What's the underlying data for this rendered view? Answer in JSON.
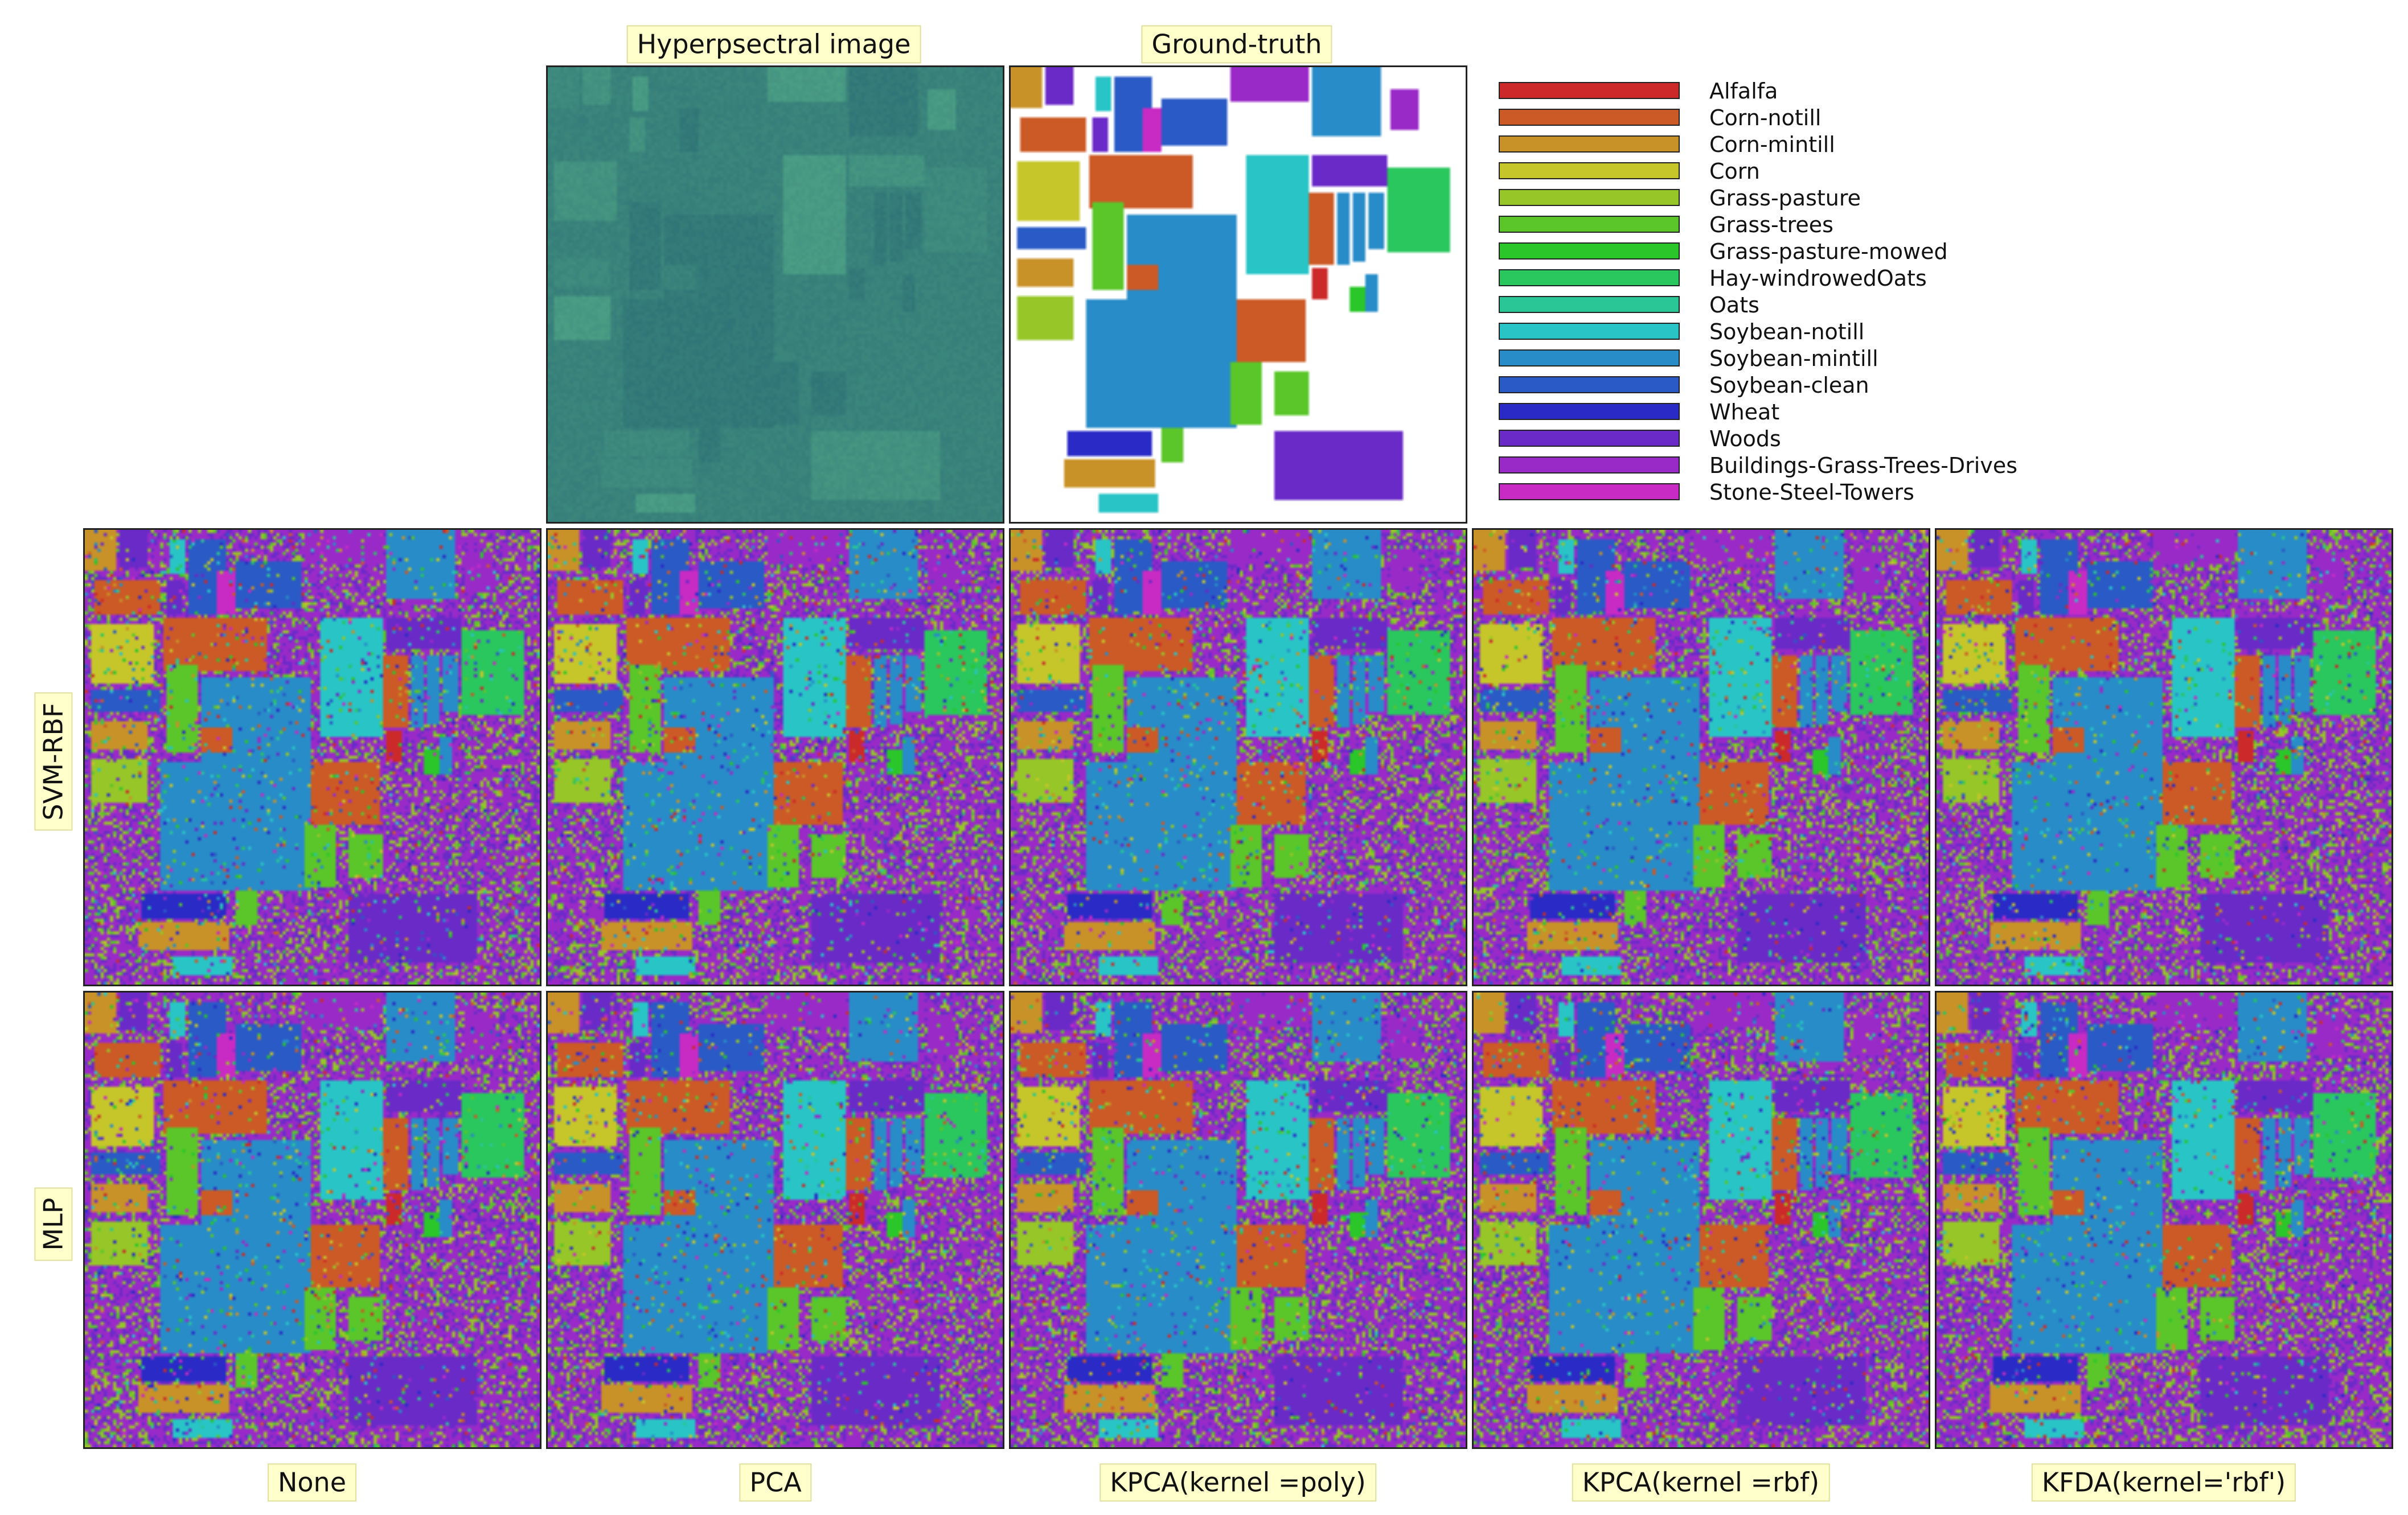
{
  "titles": {
    "hyperspectral": "Hyperpsectral image",
    "ground_truth": "Ground-truth"
  },
  "rows": [
    {
      "label": "SVM-RBF"
    },
    {
      "label": "MLP"
    }
  ],
  "columns": [
    {
      "label": "None"
    },
    {
      "label": "PCA"
    },
    {
      "label": "KPCA(kernel =poly)"
    },
    {
      "label": "KPCA(kernel =rbf)"
    },
    {
      "label": "KFDA(kernel='rbf')"
    }
  ],
  "legend": [
    {
      "label": "Alfalfa",
      "color": "#cc2a2a"
    },
    {
      "label": "Corn-notill",
      "color": "#cc5a26"
    },
    {
      "label": "Corn-mintill",
      "color": "#c89228"
    },
    {
      "label": "Corn",
      "color": "#c6c62a"
    },
    {
      "label": "Grass-pasture",
      "color": "#96c628"
    },
    {
      "label": "Grass-trees",
      "color": "#5ac62a"
    },
    {
      "label": "Grass-pasture-mowed",
      "color": "#2ac62a"
    },
    {
      "label": "Hay-windrowedOats",
      "color": "#2ac65e"
    },
    {
      "label": "Oats",
      "color": "#2ac696"
    },
    {
      "label": "Soybean-notill",
      "color": "#28c4c6"
    },
    {
      "label": "Soybean-mintill",
      "color": "#288cc8"
    },
    {
      "label": "Soybean-clean",
      "color": "#2a5ac6"
    },
    {
      "label": "Wheat",
      "color": "#2a2ac6"
    },
    {
      "label": "Woods",
      "color": "#6a2ac8"
    },
    {
      "label": "Buildings-Grass-Trees-Drives",
      "color": "#9a2ac8"
    },
    {
      "label": "Stone-Steel-Towers",
      "color": "#c82ac4"
    }
  ]
}
